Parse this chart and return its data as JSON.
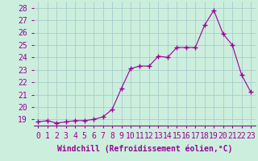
{
  "x": [
    0,
    1,
    2,
    3,
    4,
    5,
    6,
    7,
    8,
    9,
    10,
    11,
    12,
    13,
    14,
    15,
    16,
    17,
    18,
    19,
    20,
    21,
    22,
    23
  ],
  "y": [
    18.8,
    18.9,
    18.7,
    18.8,
    18.9,
    18.9,
    19.0,
    19.2,
    19.8,
    21.5,
    23.1,
    23.3,
    23.3,
    24.1,
    24.0,
    24.8,
    24.8,
    24.8,
    26.6,
    27.8,
    25.9,
    25.0,
    22.6,
    21.2
  ],
  "line_color": "#990099",
  "marker": "+",
  "marker_size": 4,
  "bg_color": "#cceedd",
  "grid_color": "#aacccc",
  "xlabel": "Windchill (Refroidissement éolien,°C)",
  "xlabel_fontsize": 7,
  "tick_fontsize": 7,
  "ylim": [
    18.5,
    28.5
  ],
  "yticks": [
    19,
    20,
    21,
    22,
    23,
    24,
    25,
    26,
    27,
    28
  ],
  "xticks": [
    0,
    1,
    2,
    3,
    4,
    5,
    6,
    7,
    8,
    9,
    10,
    11,
    12,
    13,
    14,
    15,
    16,
    17,
    18,
    19,
    20,
    21,
    22,
    23
  ]
}
